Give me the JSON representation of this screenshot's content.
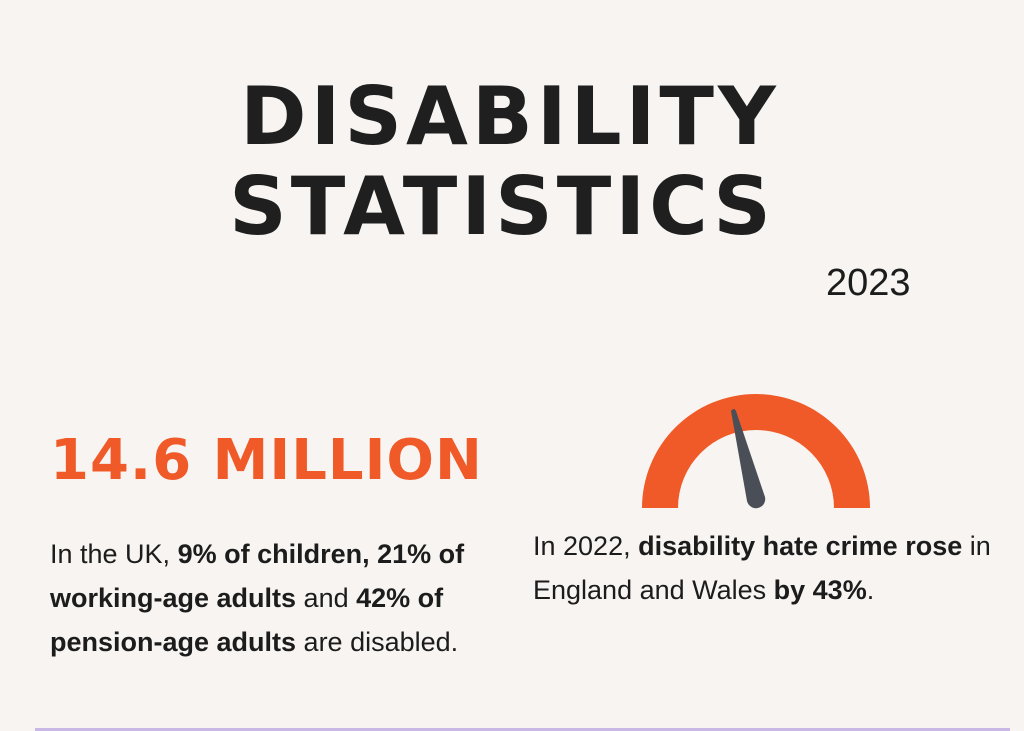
{
  "header": {
    "title_line1": "DISABILITY",
    "title_line2": "STATISTICS",
    "year": "2023"
  },
  "left": {
    "headline": "14.6 MILLION",
    "p_parts": [
      "In the UK, ",
      "9% of children, 21% of working-age adults",
      " and ",
      "42% of pension-age adults",
      " are disabled."
    ]
  },
  "right": {
    "gauge_icon": "speedometer-gauge-icon",
    "p_parts": [
      "In 2022, ",
      "disability hate crime rose",
      " in England and Wales ",
      "by 43%",
      "."
    ]
  },
  "colors": {
    "accent": "#f05a28",
    "needle": "#4a4f57",
    "divider": "#c9b8e6",
    "background": "#f7f4f1"
  }
}
